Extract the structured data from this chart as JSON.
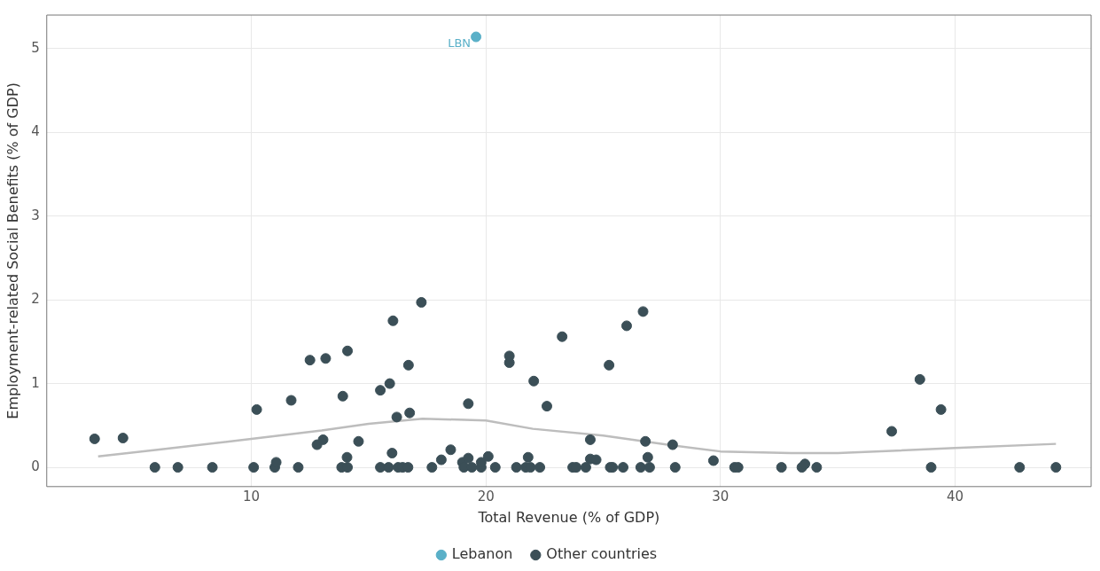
{
  "chart_data": {
    "type": "scatter",
    "xlabel": "Total Revenue (% of GDP)",
    "ylabel": "Employment-related Social Benefits (% of GDP)",
    "xlim": [
      1.28,
      45.8
    ],
    "ylim": [
      -0.23,
      5.4
    ],
    "xticks": [
      10,
      20,
      30,
      40
    ],
    "yticks": [
      0,
      1,
      2,
      3,
      4,
      5
    ],
    "grid": true,
    "legend": "bottom",
    "marker": "circle",
    "annotations": [
      {
        "text": "LBN",
        "x": 19.58,
        "y": 5.14
      }
    ],
    "series": [
      {
        "name": "Lebanon",
        "color": "#5ab0c8",
        "x": [
          19.58
        ],
        "values": [
          5.14
        ]
      },
      {
        "name": "Other countries",
        "color": "#3b4f57",
        "x": [
          3.32,
          4.53,
          5.89,
          6.87,
          8.34,
          10.1,
          10.23,
          11.0,
          11.06,
          11.7,
          12.0,
          12.5,
          12.8,
          13.06,
          13.17,
          13.85,
          14.1,
          13.9,
          14.08,
          14.1,
          14.57,
          15.5,
          15.5,
          15.85,
          15.9,
          16.0,
          16.04,
          16.2,
          16.26,
          16.45,
          16.68,
          16.7,
          16.75,
          17.25,
          17.7,
          18.1,
          18.5,
          19.0,
          19.06,
          19.4,
          19.25,
          19.25,
          19.8,
          19.8,
          20.1,
          20.4,
          21.0,
          21.0,
          21.3,
          21.8,
          21.7,
          21.9,
          22.04,
          22.3,
          22.6,
          23.25,
          23.7,
          23.85,
          24.26,
          24.45,
          24.45,
          24.7,
          25.25,
          25.3,
          25.4,
          25.85,
          26.0,
          26.6,
          26.7,
          26.8,
          26.9,
          26.98,
          27.96,
          28.07,
          29.7,
          30.6,
          30.75,
          32.6,
          33.47,
          33.6,
          34.1,
          37.3,
          38.5,
          38.98,
          39.4,
          42.75,
          44.3
        ],
        "values": [
          0.34,
          0.35,
          0,
          0,
          0,
          0,
          0.69,
          0,
          0.06,
          0.8,
          0,
          1.28,
          0.27,
          0.33,
          1.3,
          0,
          0,
          0.85,
          0.12,
          1.39,
          0.31,
          0.92,
          0,
          0,
          1.0,
          0.17,
          1.75,
          0.6,
          0,
          0,
          0,
          1.22,
          0.65,
          1.97,
          0,
          0.09,
          0.21,
          0.06,
          0,
          0,
          0.76,
          0.11,
          0,
          0.06,
          0.13,
          0,
          1.33,
          1.25,
          0,
          0.12,
          0,
          0,
          1.03,
          0,
          0.73,
          1.56,
          0,
          0,
          0,
          0.33,
          0.1,
          0.09,
          1.22,
          0,
          0,
          0,
          1.69,
          0,
          1.86,
          0.31,
          0.12,
          0,
          0.27,
          0,
          0.08,
          0,
          0,
          0,
          0,
          0.04,
          0,
          0.43,
          1.05,
          0,
          0.69,
          0,
          0
        ]
      },
      {
        "type": "line",
        "color": "#bdbdbd",
        "marker": "none",
        "x": [
          3.47,
          6,
          10,
          13,
          15,
          17.3,
          20,
          22,
          25,
          28,
          30,
          33,
          35,
          40,
          44.3
        ],
        "values": [
          0.13,
          0.21,
          0.34,
          0.44,
          0.52,
          0.58,
          0.56,
          0.46,
          0.38,
          0.26,
          0.19,
          0.17,
          0.17,
          0.23,
          0.28
        ]
      }
    ]
  }
}
